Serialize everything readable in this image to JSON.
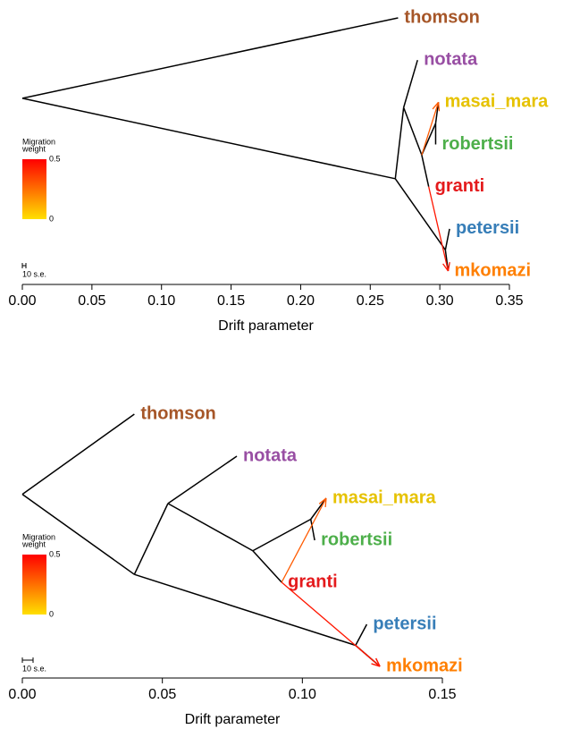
{
  "chart_data": [
    {
      "type": "tree",
      "xlabel": "Drift parameter",
      "xlim": [
        0,
        0.35
      ],
      "xticks": [
        {
          "value": 0,
          "label": "0.00"
        },
        0.05,
        {
          "value": 0.1,
          "label": "0.10"
        },
        0.15,
        {
          "value": 0.2,
          "label": "0.20"
        },
        0.25,
        {
          "value": 0.3,
          "label": "0.30"
        },
        0.35
      ],
      "nodes": [
        {
          "x": 0,
          "parent": null
        },
        {
          "x": 0.27,
          "parent": 0,
          "label": "thomson",
          "color": "#a65628"
        },
        {
          "x": 0.268,
          "parent": 0
        },
        {
          "x": 0.274,
          "parent": 2
        },
        {
          "x": 0.304,
          "parent": 2
        },
        {
          "x": 0.284,
          "parent": 3,
          "label": "notata",
          "color": "#984ea3"
        },
        {
          "x": 0.287,
          "parent": 3
        },
        {
          "x": 0.297,
          "parent": 6
        },
        {
          "x": 0.292,
          "parent": 6,
          "label": "granti",
          "color": "#e41a1c"
        },
        {
          "x": 0.299,
          "parent": 7,
          "label": "masai_mara",
          "color": "#e6c200"
        },
        {
          "x": 0.297,
          "parent": 7,
          "label": "robertsii",
          "color": "#4daf4a"
        },
        {
          "x": 0.307,
          "parent": 4,
          "label": "petersii",
          "color": "#377eb8"
        },
        {
          "x": 0.306,
          "parent": 4,
          "label": "mkomazi",
          "color": "#ff7f00"
        }
      ],
      "migrations": [
        {
          "from": 6,
          "to": 9,
          "weight": 0.3
        },
        {
          "from": 8,
          "to": 12,
          "weight": 0.45
        }
      ],
      "legend_title": [
        "Migration",
        "weight"
      ],
      "legend_lim": [
        0,
        0.5
      ],
      "legend_ticks": [
        0.5,
        0
      ],
      "scale_label": "10 s.e."
    },
    {
      "type": "tree",
      "xlabel": "Drift parameter",
      "xlim": [
        0,
        0.15
      ],
      "xticks": [
        {
          "value": 0,
          "label": "0.00"
        },
        0.05,
        {
          "value": 0.1,
          "label": "0.10"
        },
        0.15
      ],
      "nodes": [
        {
          "x": 0,
          "parent": null
        },
        {
          "x": 0.04,
          "parent": 0,
          "label": "thomson",
          "color": "#a65628"
        },
        {
          "x": 0.04,
          "parent": 0
        },
        {
          "x": 0.052,
          "parent": 2
        },
        {
          "x": 0.119,
          "parent": 2
        },
        {
          "x": 0.0766,
          "parent": 3,
          "label": "notata",
          "color": "#984ea3"
        },
        {
          "x": 0.0823,
          "parent": 3
        },
        {
          "x": 0.103,
          "parent": 6
        },
        {
          "x": 0.0926,
          "parent": 6,
          "label": "granti",
          "color": "#e41a1c"
        },
        {
          "x": 0.1085,
          "parent": 7,
          "label": "masai_mara",
          "color": "#e6c200"
        },
        {
          "x": 0.1044,
          "parent": 7,
          "label": "robertsii",
          "color": "#4daf4a"
        },
        {
          "x": 0.123,
          "parent": 4,
          "label": "petersii",
          "color": "#377eb8"
        },
        {
          "x": 0.1277,
          "parent": 4,
          "label": "mkomazi",
          "color": "#ff7f00"
        }
      ],
      "migrations": [
        {
          "from": 8,
          "to": 9,
          "weight": 0.3
        },
        {
          "from": 8,
          "to": 12,
          "weight": 0.45
        },
        {
          "from": 4,
          "to": 12,
          "weight": 0.45
        }
      ],
      "legend_title": [
        "Migration",
        "weight"
      ],
      "legend_lim": [
        0,
        0.5
      ],
      "legend_ticks": [
        0.5,
        0
      ],
      "scale_label": "10 s.e."
    }
  ]
}
